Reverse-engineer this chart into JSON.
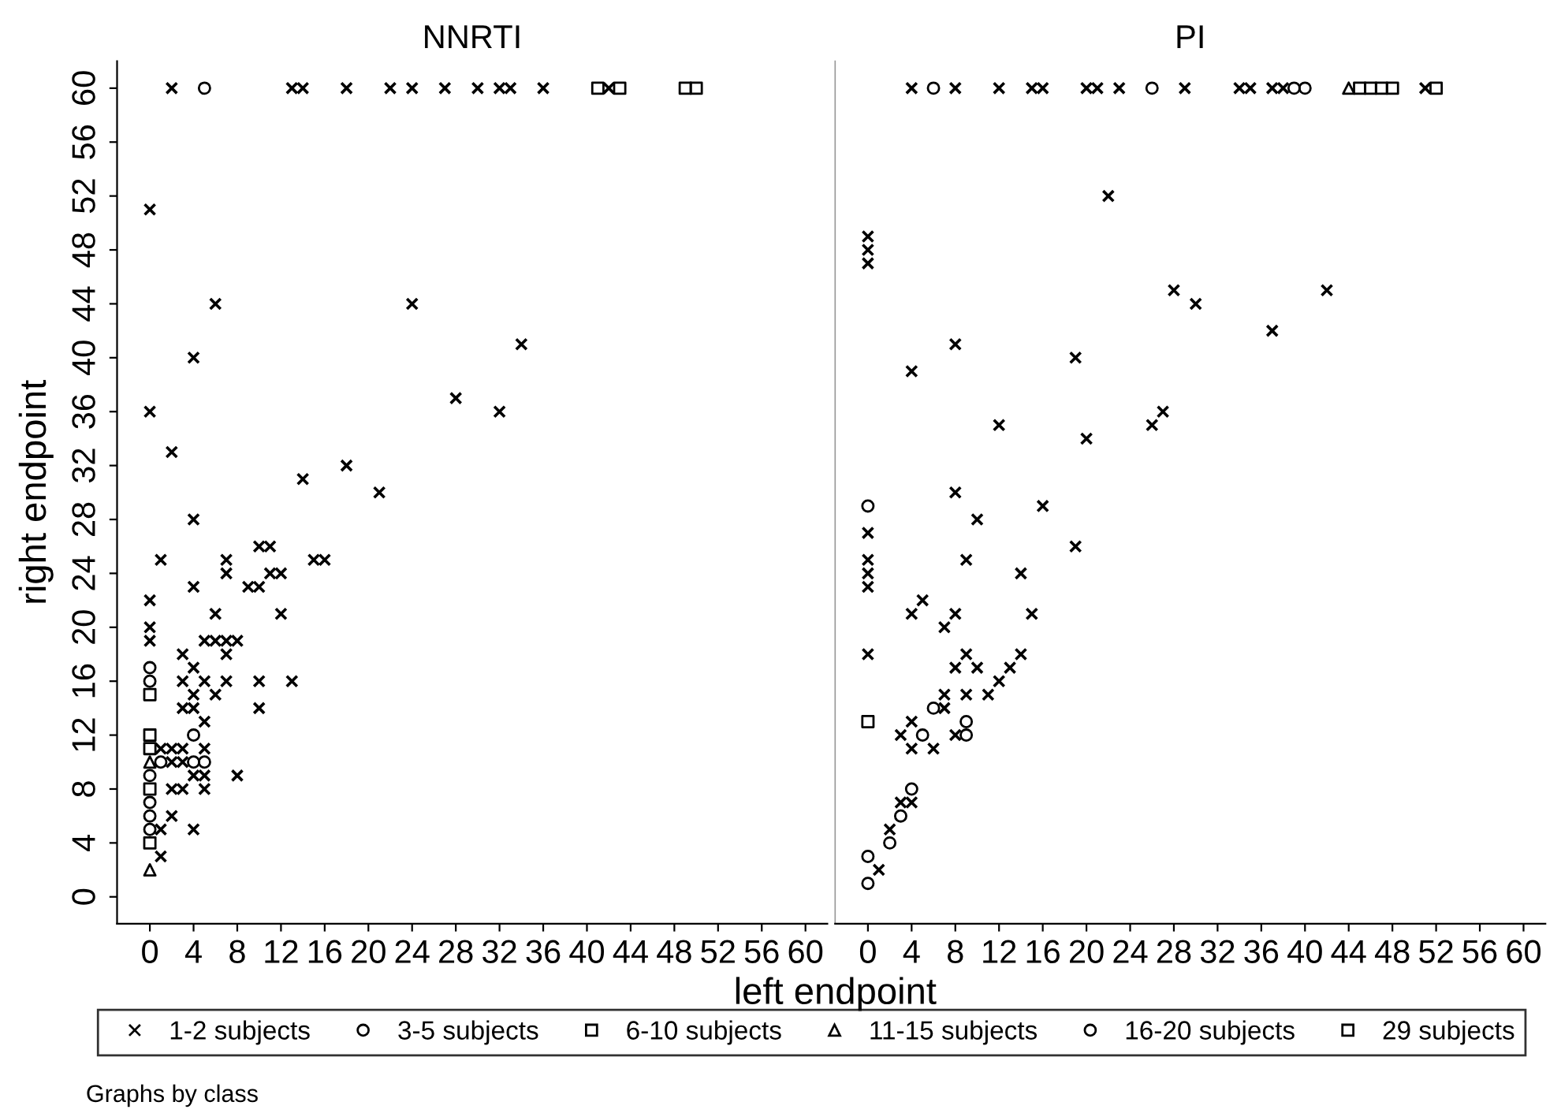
{
  "chart_data": [
    {
      "type": "scatter",
      "title": "NNRTI",
      "xlabel": "left endpoint",
      "ylabel": "right endpoint",
      "annotations": [
        "Graphs by class"
      ],
      "legend": "bottom",
      "grid": false,
      "xlim": [
        -3,
        62
      ],
      "ylim": [
        -2,
        62
      ],
      "xticks": [
        0,
        4,
        8,
        12,
        16,
        20,
        24,
        28,
        32,
        36,
        40,
        44,
        48,
        52,
        56,
        60
      ],
      "yticks": [
        0,
        4,
        8,
        12,
        16,
        20,
        24,
        28,
        32,
        36,
        40,
        44,
        48,
        52,
        56,
        60
      ],
      "series": [
        {
          "name": "1-2 subjects",
          "color": "#000000",
          "marker": "cross",
          "x": [
            2,
            13,
            14,
            18,
            22,
            24,
            27,
            30,
            32,
            33,
            36,
            42,
            0,
            6,
            24,
            4,
            34,
            28,
            32,
            0,
            2,
            14,
            18,
            21,
            4,
            10,
            11,
            1,
            7,
            7,
            11,
            12,
            15,
            16,
            4,
            9,
            10,
            0,
            6,
            12,
            0,
            0,
            3,
            3,
            7,
            10,
            13,
            3,
            10,
            4,
            5,
            4,
            6,
            4,
            5,
            5,
            6,
            7,
            8,
            7,
            8,
            4,
            1,
            2,
            3,
            5,
            2,
            3,
            4,
            5,
            2,
            3,
            5,
            1,
            2,
            1
          ],
          "values": [
            60,
            60,
            60,
            60,
            60,
            60,
            60,
            60,
            60,
            60,
            60,
            60,
            51,
            44,
            44,
            40,
            41,
            37,
            36,
            36,
            33,
            31,
            32,
            30,
            28,
            26,
            26,
            25,
            25,
            24,
            24,
            24,
            25,
            25,
            23,
            23,
            23,
            22,
            21,
            21,
            20,
            19,
            18,
            16,
            16,
            16,
            16,
            14,
            14,
            17,
            16,
            15,
            15,
            14,
            13,
            19,
            19,
            19,
            19,
            18,
            9,
            5,
            11,
            11,
            11,
            11,
            10,
            10,
            9,
            9,
            8,
            8,
            8,
            5,
            6,
            3
          ]
        },
        {
          "name": "3-5 subjects",
          "color": "#000000",
          "marker": "circle",
          "x": [
            5,
            0,
            0,
            0,
            0,
            0,
            4,
            4,
            5,
            1
          ],
          "values": [
            60,
            17,
            16,
            9,
            7,
            5,
            12,
            10,
            10,
            10
          ]
        },
        {
          "name": "6-10 subjects",
          "color": "#000000",
          "marker": "square",
          "x": [
            41,
            43,
            0,
            0,
            0
          ],
          "values": [
            60,
            60,
            15,
            12,
            11
          ]
        },
        {
          "name": "11-15 subjects",
          "color": "#000000",
          "marker": "triangle",
          "x": [
            0,
            0
          ],
          "values": [
            10,
            2
          ]
        },
        {
          "name": "16-20 subjects",
          "color": "#000000",
          "marker": "circle",
          "x": [
            0
          ],
          "values": [
            6
          ]
        },
        {
          "name": "29 subjects",
          "color": "#000000",
          "marker": "square",
          "x": [
            49,
            50,
            0,
            0
          ],
          "values": [
            60,
            60,
            8,
            4
          ]
        }
      ]
    },
    {
      "type": "scatter",
      "title": "PI",
      "tick_labels": "x",
      "grid": false,
      "xlim": [
        -3,
        62
      ],
      "ylim": [
        -2,
        62
      ],
      "xticks": [
        0,
        4,
        8,
        12,
        16,
        20,
        24,
        28,
        32,
        36,
        40,
        44,
        48,
        52,
        56,
        60
      ],
      "yticks": [
        0,
        4,
        8,
        12,
        16,
        20,
        24,
        28,
        32,
        36,
        40,
        44,
        48,
        52,
        56,
        60
      ],
      "series": [
        {
          "name": "1-2 subjects",
          "color": "#000000",
          "marker": "cross",
          "x": [
            4,
            8,
            12,
            15,
            16,
            20,
            21,
            23,
            29,
            34,
            35,
            37,
            38,
            51,
            22,
            0,
            0,
            0,
            28,
            30,
            42,
            37,
            8,
            4,
            19,
            12,
            20,
            26,
            27,
            0,
            0,
            0,
            0,
            8,
            10,
            16,
            19,
            9,
            14,
            5,
            4,
            8,
            15,
            7,
            0,
            9,
            8,
            10,
            9,
            11,
            12,
            13,
            14,
            7,
            7,
            3,
            4,
            4,
            6,
            8,
            4,
            3,
            2,
            1
          ],
          "values": [
            60,
            60,
            60,
            60,
            60,
            60,
            60,
            60,
            60,
            60,
            60,
            60,
            60,
            60,
            52,
            49,
            48,
            47,
            45,
            44,
            45,
            42,
            41,
            39,
            40,
            35,
            34,
            35,
            36,
            27,
            25,
            24,
            23,
            30,
            28,
            29,
            26,
            25,
            24,
            22,
            21,
            21,
            21,
            20,
            18,
            18,
            17,
            17,
            15,
            15,
            16,
            17,
            18,
            15,
            14,
            12,
            13,
            11,
            11,
            12,
            7,
            7,
            5,
            2
          ]
        },
        {
          "name": "3-5 subjects",
          "color": "#000000",
          "marker": "circle",
          "x": [
            6,
            26,
            0,
            6,
            5,
            9,
            9,
            4,
            3,
            2,
            0
          ],
          "values": [
            60,
            60,
            29,
            14,
            12,
            13,
            12,
            8,
            6,
            4,
            1
          ]
        },
        {
          "name": "6-10 subjects",
          "color": "#000000",
          "marker": "square",
          "x": [
            0
          ],
          "values": [
            13
          ]
        },
        {
          "name": "11-15 subjects",
          "color": "#000000",
          "marker": "triangle",
          "x": [
            44
          ],
          "values": [
            60
          ]
        },
        {
          "name": "16-20 subjects",
          "color": "#000000",
          "marker": "circle",
          "x": [
            39,
            40,
            0
          ],
          "values": [
            60,
            60,
            3
          ]
        },
        {
          "name": "29 subjects",
          "color": "#000000",
          "marker": "square",
          "x": [
            45,
            46,
            47,
            48,
            52
          ],
          "values": [
            60,
            60,
            60,
            60,
            60
          ]
        }
      ]
    }
  ]
}
